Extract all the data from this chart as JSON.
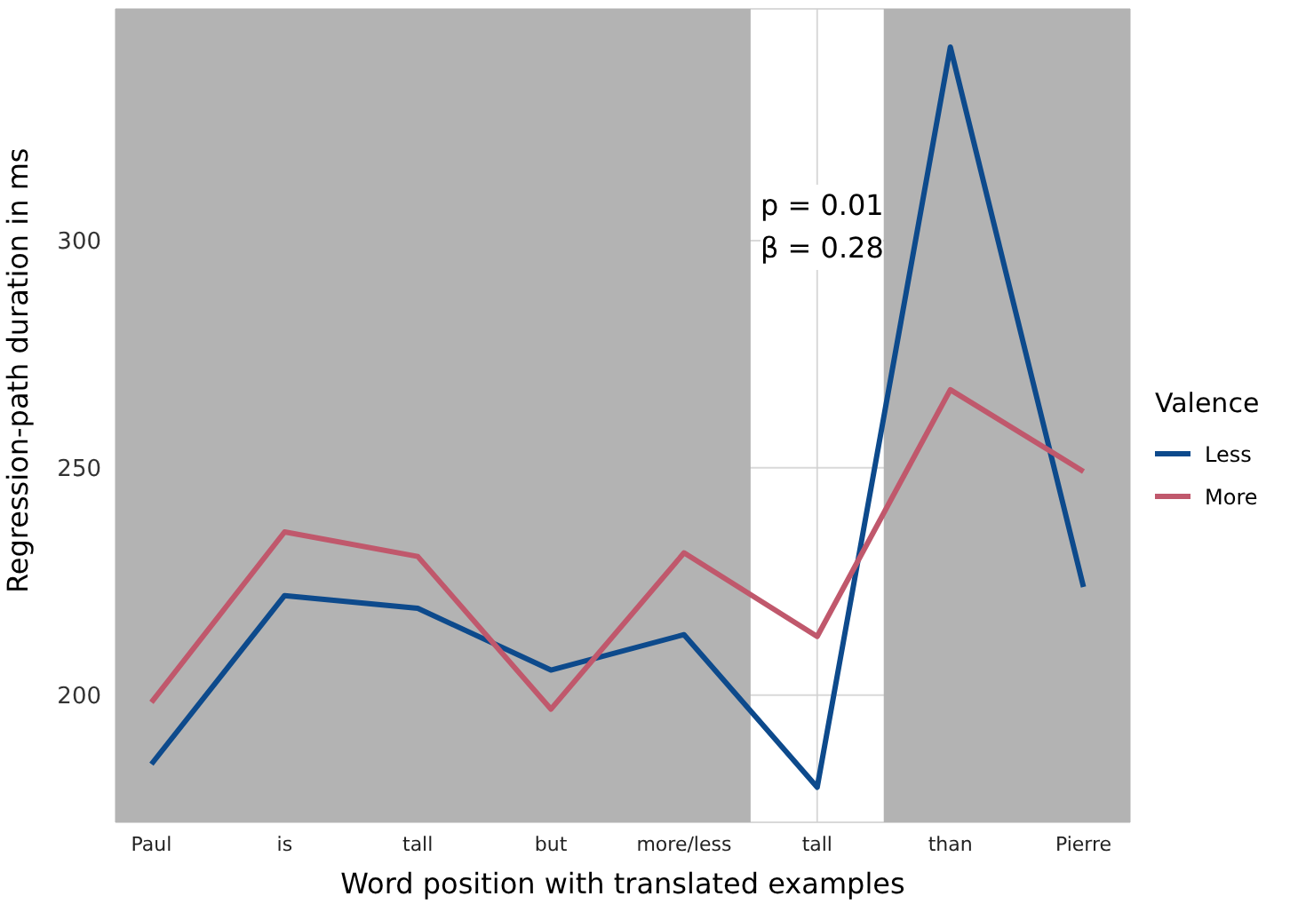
{
  "chart_data": {
    "type": "line",
    "xlabel": "Word position with translated examples",
    "ylabel": "Regression-path duration in ms",
    "legend_title": "Valence",
    "categories": [
      "Paul",
      "is",
      "tall",
      "but",
      "more/less",
      "tall",
      "than",
      "Pierre"
    ],
    "series": [
      {
        "name": "Less",
        "color": "#0d4a8c",
        "values": [
          184.8,
          221.9,
          219.1,
          205.5,
          213.3,
          179.7,
          342.6,
          223.8
        ]
      },
      {
        "name": "More",
        "color": "#c0586c",
        "values": [
          198.4,
          235.9,
          230.5,
          196.9,
          231.3,
          212.9,
          267.2,
          249.2
        ]
      }
    ],
    "ylim": [
      172,
      351
    ],
    "yticks": [
      200,
      250,
      300
    ],
    "grid": true,
    "legend": "right",
    "marker": "none",
    "line_style": "solid",
    "bands": [
      {
        "axis": "x",
        "from": "Paul",
        "to": "more/less",
        "color": "#b3b3b3"
      },
      {
        "axis": "x",
        "from": "than",
        "to": "Pierre",
        "color": "#b3b3b3"
      }
    ],
    "annotations": [
      "p = 0.01",
      "β = 0.28"
    ]
  }
}
